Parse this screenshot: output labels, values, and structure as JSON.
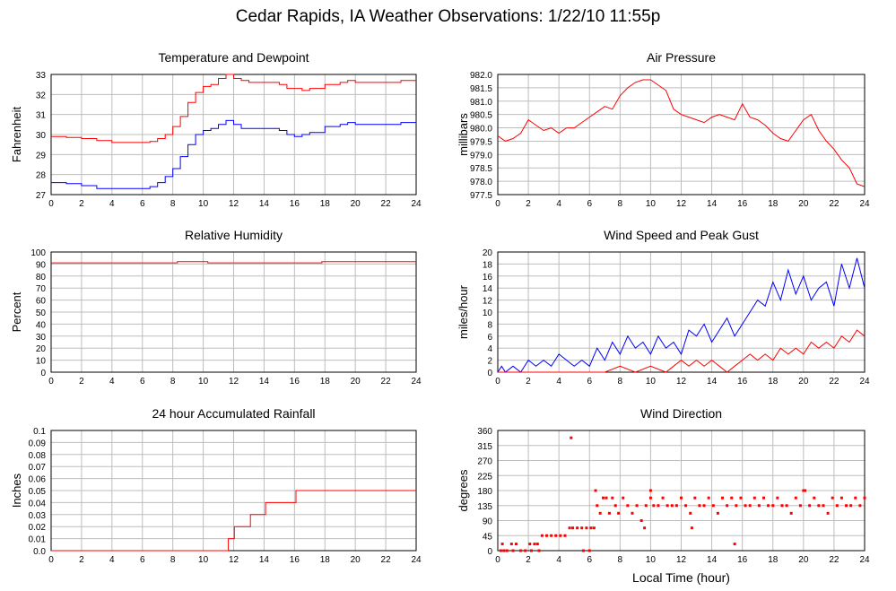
{
  "page_title": "Cedar Rapids, IA Weather Observations: 1/22/10 11:55p",
  "chart_data": [
    {
      "id": "temp",
      "type": "line",
      "title": "Temperature and Dewpoint",
      "xlabel": "",
      "ylabel": "Fahrenheit",
      "xlim": [
        0,
        24
      ],
      "ylim": [
        27,
        33
      ],
      "x_ticks": [
        0,
        2,
        4,
        6,
        8,
        10,
        12,
        14,
        16,
        18,
        20,
        22,
        24
      ],
      "y_ticks": [
        "27",
        "28",
        "29",
        "30",
        "31",
        "32",
        "33"
      ],
      "grid": true,
      "series": [
        {
          "color": "#ff0000",
          "step": true,
          "x": [
            0,
            1,
            2,
            3,
            4,
            5,
            6,
            6.5,
            7,
            7.5,
            8,
            8.5,
            9,
            9.5,
            10,
            10.5,
            11,
            11.5,
            12,
            12.5,
            13,
            14,
            15,
            15.5,
            16,
            16.5,
            17,
            18,
            19,
            19.5,
            20,
            21,
            22,
            23,
            24
          ],
          "y": [
            29.9,
            29.85,
            29.8,
            29.7,
            29.6,
            29.6,
            29.6,
            29.65,
            29.8,
            30.0,
            30.4,
            30.9,
            31.6,
            32.1,
            32.4,
            32.5,
            32.8,
            33.0,
            32.8,
            32.7,
            32.6,
            32.6,
            32.5,
            32.3,
            32.3,
            32.2,
            32.3,
            32.5,
            32.6,
            32.7,
            32.6,
            32.6,
            32.6,
            32.7,
            32.7
          ]
        },
        {
          "color": "#0000ff",
          "step": true,
          "x": [
            0,
            1,
            2,
            3,
            4,
            5,
            6,
            6.5,
            7,
            7.5,
            8,
            8.5,
            9,
            9.5,
            10,
            10.5,
            11,
            11.5,
            12,
            12.5,
            13,
            14,
            15,
            15.5,
            16,
            16.5,
            17,
            18,
            19,
            19.5,
            20,
            21,
            22,
            23,
            24
          ],
          "y": [
            27.6,
            27.55,
            27.45,
            27.3,
            27.3,
            27.3,
            27.3,
            27.4,
            27.6,
            27.9,
            28.3,
            28.9,
            29.5,
            30.0,
            30.2,
            30.3,
            30.5,
            30.7,
            30.5,
            30.3,
            30.3,
            30.3,
            30.2,
            30.0,
            29.9,
            30.0,
            30.1,
            30.4,
            30.5,
            30.6,
            30.5,
            30.5,
            30.5,
            30.6,
            30.6
          ]
        }
      ]
    },
    {
      "id": "pressure",
      "type": "line",
      "title": "Air Pressure",
      "xlabel": "",
      "ylabel": "millibars",
      "xlim": [
        0,
        24
      ],
      "ylim": [
        977.5,
        982.0
      ],
      "x_ticks": [
        0,
        2,
        4,
        6,
        8,
        10,
        12,
        14,
        16,
        18,
        20,
        22,
        24
      ],
      "y_ticks": [
        "977.5",
        "978.0",
        "978.5",
        "979.0",
        "979.5",
        "980.0",
        "980.5",
        "981.0",
        "981.5",
        "982.0"
      ],
      "grid": true,
      "series": [
        {
          "color": "#ff0000",
          "step": false,
          "x": [
            0,
            0.5,
            1,
            1.5,
            2,
            2.5,
            3,
            3.5,
            4,
            4.5,
            5,
            5.5,
            6,
            6.5,
            7,
            7.5,
            8,
            8.5,
            9,
            9.5,
            10,
            10.5,
            11,
            11.5,
            12,
            12.5,
            13,
            13.5,
            14,
            14.5,
            15,
            15.5,
            16,
            16.5,
            17,
            17.5,
            18,
            18.5,
            19,
            19.5,
            20,
            20.5,
            21,
            21.5,
            22,
            22.5,
            23,
            23.5,
            24
          ],
          "y": [
            979.7,
            979.5,
            979.6,
            979.8,
            980.3,
            980.1,
            979.9,
            980.0,
            979.8,
            980.0,
            980.0,
            980.2,
            980.4,
            980.6,
            980.8,
            980.7,
            981.2,
            981.5,
            981.7,
            981.8,
            981.8,
            981.6,
            981.4,
            980.7,
            980.5,
            980.4,
            980.3,
            980.2,
            980.4,
            980.5,
            980.4,
            980.3,
            980.9,
            980.4,
            980.3,
            980.1,
            979.8,
            979.6,
            979.5,
            979.9,
            980.3,
            980.5,
            979.9,
            979.5,
            979.2,
            978.8,
            978.5,
            977.9,
            977.8
          ]
        }
      ]
    },
    {
      "id": "humidity",
      "type": "line",
      "title": "Relative Humidity",
      "xlabel": "",
      "ylabel": "Percent",
      "xlim": [
        0,
        24
      ],
      "ylim": [
        0,
        100
      ],
      "x_ticks": [
        0,
        2,
        4,
        6,
        8,
        10,
        12,
        14,
        16,
        18,
        20,
        22,
        24
      ],
      "y_ticks": [
        "0",
        "10",
        "20",
        "30",
        "40",
        "50",
        "60",
        "70",
        "80",
        "90",
        "100"
      ],
      "grid": true,
      "series": [
        {
          "color": "#ff0000",
          "step": true,
          "x": [
            0,
            4,
            8.3,
            10.3,
            17.3,
            17.8,
            24
          ],
          "y": [
            91,
            91,
            92,
            91,
            91,
            92,
            92
          ]
        }
      ]
    },
    {
      "id": "wind",
      "type": "line",
      "title": "Wind Speed and Peak Gust",
      "xlabel": "",
      "ylabel": "miles/hour",
      "xlim": [
        0,
        24
      ],
      "ylim": [
        0,
        20
      ],
      "x_ticks": [
        0,
        2,
        4,
        6,
        8,
        10,
        12,
        14,
        16,
        18,
        20,
        22,
        24
      ],
      "y_ticks": [
        "0",
        "2",
        "4",
        "6",
        "8",
        "10",
        "12",
        "14",
        "16",
        "18",
        "20"
      ],
      "grid": true,
      "series": [
        {
          "color": "#0000ff",
          "step": false,
          "x": [
            0,
            0.25,
            0.5,
            1,
            1.5,
            2,
            2.5,
            3,
            3.5,
            4,
            4.5,
            5,
            5.5,
            6,
            6.5,
            7,
            7.5,
            8,
            8.5,
            9,
            9.5,
            10,
            10.5,
            11,
            11.5,
            12,
            12.5,
            13,
            13.5,
            14,
            14.5,
            15,
            15.5,
            16,
            16.5,
            17,
            17.5,
            18,
            18.5,
            19,
            19.5,
            20,
            20.5,
            21,
            21.5,
            22,
            22.5,
            23,
            23.5,
            24
          ],
          "y": [
            0,
            1,
            0,
            1,
            0,
            2,
            1,
            2,
            1,
            3,
            2,
            1,
            2,
            1,
            4,
            2,
            5,
            3,
            6,
            4,
            5,
            3,
            6,
            4,
            5,
            3,
            7,
            6,
            8,
            5,
            7,
            9,
            6,
            8,
            10,
            12,
            11,
            15,
            12,
            17,
            13,
            16,
            12,
            14,
            15,
            11,
            18,
            14,
            19,
            14
          ]
        },
        {
          "color": "#ff0000",
          "step": false,
          "x": [
            0,
            1,
            2,
            3,
            4,
            5,
            6,
            7,
            8,
            9,
            10,
            11,
            11.5,
            12,
            12.5,
            13,
            13.5,
            14,
            14.5,
            15,
            15.5,
            16,
            16.5,
            17,
            17.5,
            18,
            18.5,
            19,
            19.5,
            20,
            20.5,
            21,
            21.5,
            22,
            22.5,
            23,
            23.5,
            24
          ],
          "y": [
            0,
            0,
            0,
            0,
            0,
            0,
            0,
            0,
            1,
            0,
            1,
            0,
            1,
            2,
            1,
            2,
            1,
            2,
            1,
            0,
            1,
            2,
            3,
            2,
            3,
            2,
            4,
            3,
            4,
            3,
            5,
            4,
            5,
            4,
            6,
            5,
            7,
            6
          ]
        }
      ]
    },
    {
      "id": "rain",
      "type": "line",
      "title": "24 hour Accumulated Rainfall",
      "xlabel": "",
      "ylabel": "Inches",
      "xlim": [
        0,
        24
      ],
      "ylim": [
        0,
        0.1
      ],
      "x_ticks": [
        0,
        2,
        4,
        6,
        8,
        10,
        12,
        14,
        16,
        18,
        20,
        22,
        24
      ],
      "y_ticks": [
        "0.0",
        "0.01",
        "0.02",
        "0.03",
        "0.04",
        "0.05",
        "0.06",
        "0.07",
        "0.08",
        "0.09",
        "0.1"
      ],
      "grid": true,
      "series": [
        {
          "color": "#ff0000",
          "step": true,
          "x": [
            0,
            11.65,
            12.05,
            12.6,
            13.1,
            14.1,
            16.1,
            24
          ],
          "y": [
            0.0,
            0.01,
            0.02,
            0.02,
            0.03,
            0.04,
            0.05,
            0.05
          ]
        }
      ]
    },
    {
      "id": "direction",
      "type": "scatter",
      "title": "Wind Direction",
      "xlabel": "Local Time (hour)",
      "ylabel": "degrees",
      "xlim": [
        0,
        24
      ],
      "ylim": [
        0,
        360
      ],
      "x_ticks": [
        0,
        2,
        4,
        6,
        8,
        10,
        12,
        14,
        16,
        18,
        20,
        22,
        24
      ],
      "y_ticks": [
        "0",
        "45",
        "90",
        "135",
        "180",
        "225",
        "270",
        "315",
        "360"
      ],
      "grid": true,
      "series": [
        {
          "color": "#ff0000",
          "x": [
            0.2,
            0.4,
            0.6,
            0.9,
            1.2,
            1.5,
            1.8,
            2.1,
            2.4,
            2.7,
            2.9,
            3.2,
            3.5,
            3.8,
            4.1,
            4.4,
            4.7,
            4.9,
            5.2,
            5.5,
            5.8,
            6.1,
            6.3,
            6.5,
            6.7,
            6.9,
            7.1,
            7.3,
            7.5,
            7.7,
            7.9,
            8.2,
            8.5,
            8.8,
            9.1,
            9.4,
            9.7,
            10.0,
            10.2,
            10.5,
            10.8,
            11.1,
            11.4,
            11.7,
            12.0,
            12.3,
            12.6,
            12.9,
            13.2,
            13.5,
            13.8,
            14.1,
            14.4,
            14.7,
            15.0,
            15.3,
            15.6,
            15.9,
            16.2,
            16.5,
            16.8,
            17.1,
            17.4,
            17.7,
            18.0,
            18.3,
            18.6,
            18.9,
            19.2,
            19.5,
            19.8,
            20.1,
            20.4,
            20.7,
            21.0,
            21.3,
            21.6,
            21.9,
            22.2,
            22.5,
            22.8,
            23.1,
            23.4,
            23.7,
            24.0,
            4.8,
            5.6,
            6.0,
            0.3,
            1.0,
            2.2,
            2.6,
            6.4,
            9.6,
            10.0,
            12.7,
            15.5,
            20.0
          ],
          "y": [
            0,
            0,
            0,
            20,
            20,
            0,
            0,
            20,
            20,
            0,
            45,
            45,
            45,
            45,
            45,
            45,
            68,
            68,
            68,
            68,
            68,
            68,
            68,
            135,
            112,
            158,
            158,
            112,
            158,
            135,
            112,
            158,
            135,
            112,
            135,
            90,
            135,
            158,
            135,
            135,
            158,
            135,
            135,
            135,
            158,
            135,
            112,
            158,
            135,
            135,
            158,
            135,
            112,
            158,
            135,
            158,
            135,
            158,
            135,
            135,
            158,
            135,
            158,
            135,
            135,
            158,
            135,
            135,
            112,
            158,
            135,
            180,
            135,
            158,
            135,
            135,
            112,
            158,
            135,
            158,
            135,
            135,
            158,
            135,
            158,
            338,
            0,
            0,
            20,
            0,
            0,
            20,
            180,
            68,
            180,
            68,
            20,
            180
          ]
        }
      ]
    }
  ]
}
